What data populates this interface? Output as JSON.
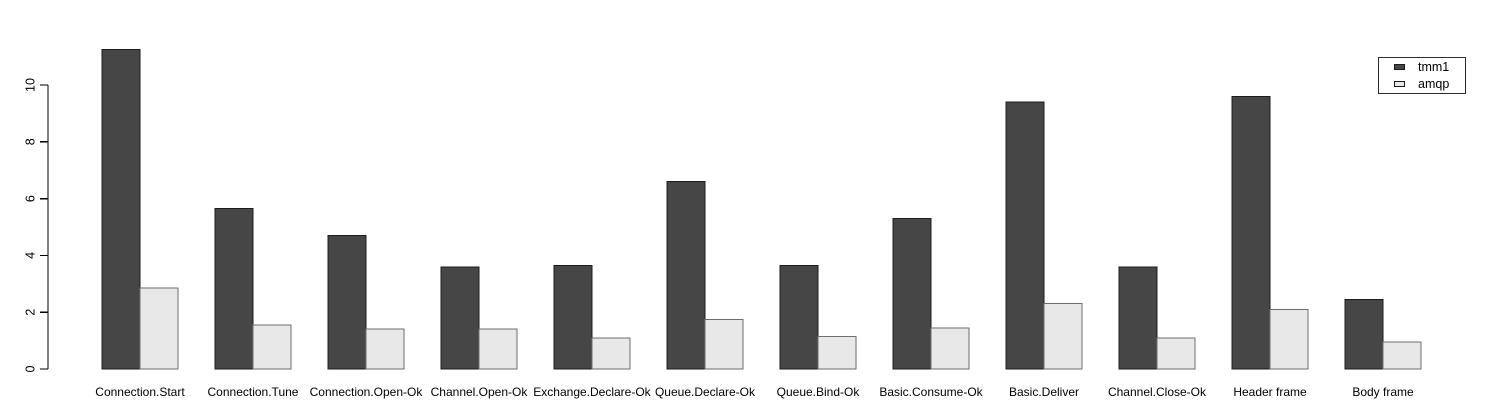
{
  "chart_data": {
    "type": "bar",
    "title": "",
    "xlabel": "",
    "ylabel": "",
    "categories": [
      "Connection.Start",
      "Connection.Tune",
      "Connection.Open-Ok",
      "Channel.Open-Ok",
      "Exchange.Declare-Ok",
      "Queue.Declare-Ok",
      "Queue.Bind-Ok",
      "Basic.Consume-Ok",
      "Basic.Deliver",
      "Channel.Close-Ok",
      "Header frame",
      "Body frame"
    ],
    "series": [
      {
        "name": "tmm1",
        "fill": "#464646",
        "border": "#1c1c1c",
        "values": [
          11.25,
          5.65,
          4.7,
          3.6,
          3.65,
          6.6,
          3.65,
          5.3,
          9.4,
          3.6,
          9.6,
          2.45
        ]
      },
      {
        "name": "amqp",
        "fill": "#e8e8e8",
        "border": "#6e6e6e",
        "values": [
          2.85,
          1.55,
          1.4,
          1.4,
          1.1,
          1.75,
          1.15,
          1.45,
          2.3,
          1.1,
          2.1,
          0.95
        ]
      }
    ],
    "ylim": [
      0,
      11.5
    ],
    "yticks": [
      "0",
      "2",
      "4",
      "6",
      "8",
      "10"
    ],
    "grid": false,
    "legend_position": "top-right",
    "axis_color": "#000000",
    "background_color": "#ffffff"
  }
}
